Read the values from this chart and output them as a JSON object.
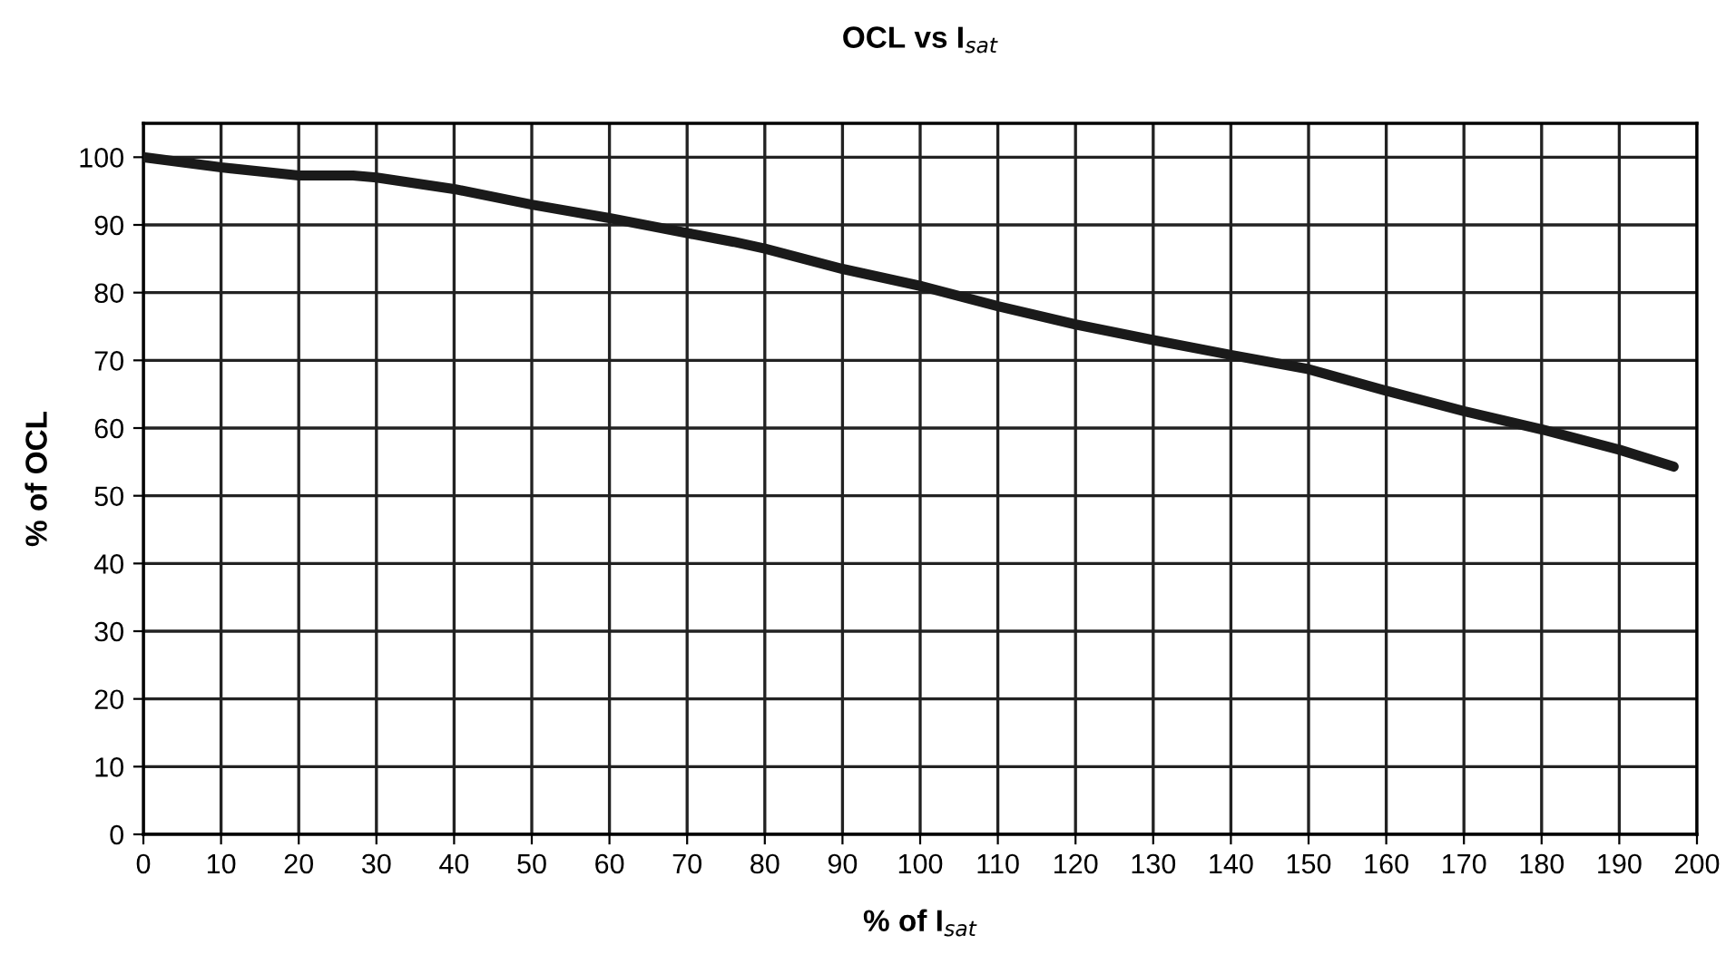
{
  "chart_data": {
    "type": "line",
    "title": "OCL vs I$_{sat}$",
    "xlabel": "% of I$_{sat}$",
    "ylabel": "% of OCL",
    "xlim": [
      0,
      200
    ],
    "ylim": [
      0,
      105
    ],
    "xticks": [
      0,
      10,
      20,
      30,
      40,
      50,
      60,
      70,
      80,
      90,
      100,
      110,
      120,
      130,
      140,
      150,
      160,
      170,
      180,
      190,
      200
    ],
    "yticks": [
      0,
      10,
      20,
      30,
      40,
      50,
      60,
      70,
      80,
      90,
      100
    ],
    "grid": true,
    "marker": "none",
    "line_style": "solid",
    "series": [
      {
        "color": "#1a1a1a",
        "x": [
          0,
          10,
          20,
          27,
          30,
          40,
          50,
          60,
          70,
          76,
          80,
          90,
          100,
          110,
          120,
          130,
          140,
          150,
          160,
          170,
          180,
          190,
          197
        ],
        "values": [
          100,
          98.5,
          97.3,
          97.3,
          97,
          95.3,
          93,
          91,
          88.8,
          87.5,
          86.5,
          83.5,
          81,
          78,
          75.3,
          73,
          70.8,
          68.7,
          65.5,
          62.5,
          59.8,
          56.8,
          54.3
        ]
      }
    ]
  }
}
